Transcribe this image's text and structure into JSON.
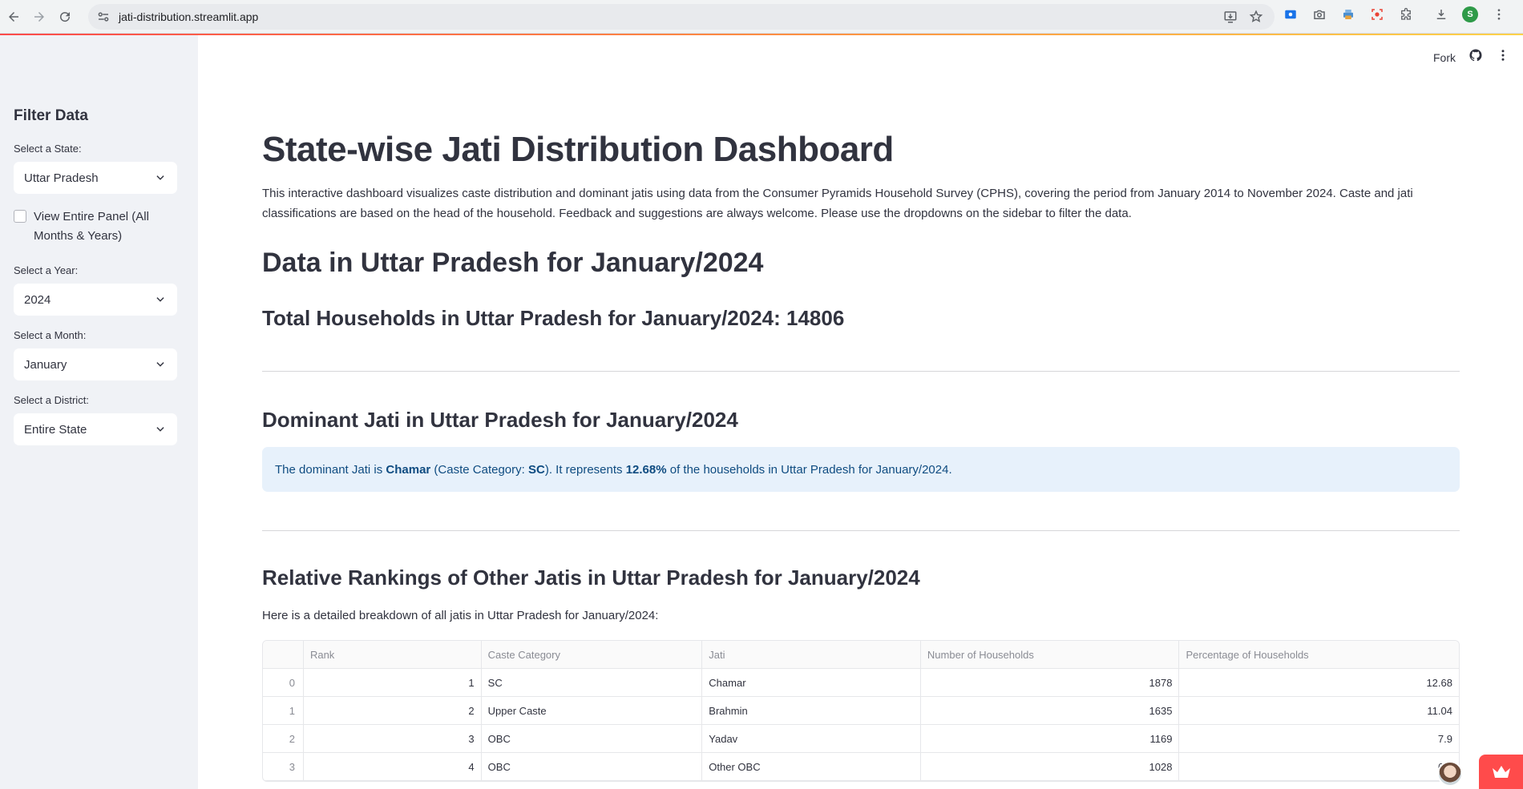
{
  "browser": {
    "url": "jati-distribution.streamlit.app",
    "profile_initial": "S"
  },
  "toolbar": {
    "fork_label": "Fork"
  },
  "sidebar": {
    "title": "Filter Data",
    "state_label": "Select a State:",
    "state_value": "Uttar Pradesh",
    "panel_checkbox_label": "View Entire Panel (All Months & Years)",
    "year_label": "Select a Year:",
    "year_value": "2024",
    "month_label": "Select a Month:",
    "month_value": "January",
    "district_label": "Select a District:",
    "district_value": "Entire State"
  },
  "main": {
    "title": "State-wise Jati Distribution Dashboard",
    "intro": "This interactive dashboard visualizes caste distribution and dominant jatis using data from the Consumer Pyramids Household Survey (CPHS), covering the period from January 2014 to November 2024. Caste and jati classifications are based on the head of the household. Feedback and suggestions are always welcome. Please use the dropdowns on the sidebar to filter the data.",
    "data_heading": "Data in Uttar Pradesh for January/2024",
    "total_heading": "Total Households in Uttar Pradesh for January/2024: 14806",
    "dominant_heading": "Dominant Jati in Uttar Pradesh for January/2024",
    "info": {
      "prefix": "The dominant Jati is ",
      "jati": "Chamar",
      "mid1": " (Caste Category: ",
      "category": "SC",
      "mid2": "). It represents ",
      "percent": "12.68%",
      "suffix": " of the households in Uttar Pradesh for January/2024."
    },
    "rankings_heading": "Relative Rankings of Other Jatis in Uttar Pradesh for January/2024",
    "breakdown_text": "Here is a detailed breakdown of all jatis in Uttar Pradesh for January/2024:"
  },
  "table": {
    "columns": [
      "",
      "Rank",
      "Caste Category",
      "Jati",
      "Number of Households",
      "Percentage of Households"
    ],
    "rows": [
      {
        "index": "0",
        "rank": "1",
        "category": "SC",
        "jati": "Chamar",
        "households": "1878",
        "percent": "12.68"
      },
      {
        "index": "1",
        "rank": "2",
        "category": "Upper Caste",
        "jati": "Brahmin",
        "households": "1635",
        "percent": "11.04"
      },
      {
        "index": "2",
        "rank": "3",
        "category": "OBC",
        "jati": "Yadav",
        "households": "1169",
        "percent": "7.9"
      },
      {
        "index": "3",
        "rank": "4",
        "category": "OBC",
        "jati": "Other OBC",
        "households": "1028",
        "percent": "6.9"
      }
    ]
  },
  "colors": {
    "accent": "#ff4b4b",
    "sidebar_bg": "#f0f2f6",
    "info_bg": "#e7f1fb",
    "info_text": "#0f4c81"
  }
}
